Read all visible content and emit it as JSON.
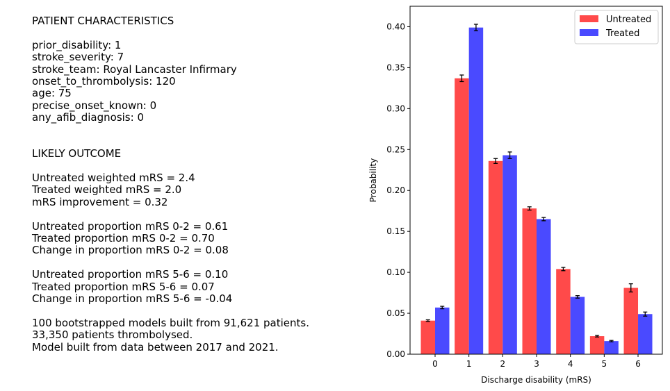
{
  "patient": {
    "heading": "PATIENT CHARACTERISTICS",
    "lines": [
      "prior_disability: 1",
      "stroke_severity: 7",
      "stroke_team: Royal Lancaster Infirmary",
      "onset_to_thrombolysis: 120",
      "age: 75",
      "precise_onset_known: 0",
      "any_afib_diagnosis: 0"
    ]
  },
  "outcome": {
    "heading": "LIKELY OUTCOME",
    "weighted": [
      "Untreated weighted mRS = 2.4",
      "Treated weighted mRS = 2.0",
      "mRS improvement = 0.32"
    ],
    "mrs02": [
      "Untreated proportion mRS 0-2 = 0.61",
      "Treated proportion mRS 0-2 = 0.70",
      "Change in proportion mRS 0-2 = 0.08"
    ],
    "mrs56": [
      "Untreated proportion mRS 5-6 = 0.10",
      "Treated proportion mRS 5-6 = 0.07",
      "Change in proportion mRS 5-6 = -0.04"
    ],
    "model": [
      "100 bootstrapped models built from 91,621 patients.",
      "33,350 patients thrombolysed.",
      "Model built from data between 2017 and 2021."
    ]
  },
  "chart_data": {
    "type": "bar",
    "categories": [
      "0",
      "1",
      "2",
      "3",
      "4",
      "5",
      "6"
    ],
    "series": [
      {
        "name": "Untreated",
        "color": "#ff4a4a",
        "values": [
          0.041,
          0.337,
          0.236,
          0.178,
          0.104,
          0.022,
          0.081
        ],
        "errors": [
          0.001,
          0.004,
          0.003,
          0.002,
          0.002,
          0.001,
          0.005
        ]
      },
      {
        "name": "Treated",
        "color": "#4a4aff",
        "values": [
          0.057,
          0.399,
          0.243,
          0.165,
          0.07,
          0.016,
          0.049
        ],
        "errors": [
          0.0015,
          0.004,
          0.004,
          0.002,
          0.0015,
          0.0008,
          0.0025
        ]
      }
    ],
    "xlabel": "Discharge disability (mRS)",
    "ylabel": "Probability",
    "ylim": [
      0,
      0.425
    ],
    "yticks": [
      "0.00",
      "0.05",
      "0.10",
      "0.15",
      "0.20",
      "0.25",
      "0.30",
      "0.35",
      "0.40"
    ],
    "legend": "top-right",
    "grid": false
  }
}
